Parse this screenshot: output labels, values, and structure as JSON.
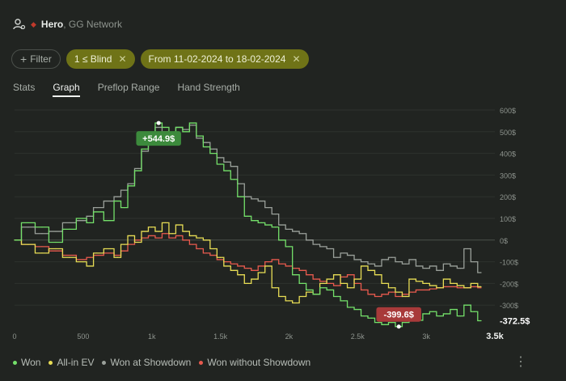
{
  "header": {
    "player": "Hero",
    "network": ", GG Network"
  },
  "filters": {
    "filter_label": "Filter",
    "blind_label": "1 ≤ Blind",
    "date_label": "From 11-02-2024 to 18-02-2024"
  },
  "tabs": [
    "Stats",
    "Graph",
    "Preflop Range",
    "Hand Strength"
  ],
  "active_tab": "Graph",
  "legend": {
    "won": "Won",
    "allin": "All-in EV",
    "showdown": "Won at Showdown",
    "noshowdown": "Won without Showdown"
  },
  "colors": {
    "won": "#74e06a",
    "allin": "#e8dd55",
    "showdown": "#9aa09a",
    "noshowdown": "#e85a4e",
    "chip": "#6f7317"
  },
  "chart_data": {
    "type": "line",
    "xlim": [
      0,
      3500
    ],
    "ylim": [
      -400,
      600
    ],
    "x_ticks": [
      0,
      500,
      1000,
      1500,
      2000,
      2500,
      3000,
      3500
    ],
    "x_tick_labels": [
      "0",
      "500",
      "1k",
      "1.5k",
      "2k",
      "2.5k",
      "3k",
      "3.5k"
    ],
    "y_ticks": [
      600,
      500,
      400,
      300,
      200,
      100,
      0,
      -100,
      -200,
      -300
    ],
    "y_tick_labels": [
      "600$",
      "500$",
      "400$",
      "300$",
      "200$",
      "100$",
      "0$",
      "-100$",
      "-200$",
      "-300$"
    ],
    "annotations": {
      "max_label": "+544.9$",
      "min_label": "-399.6$",
      "end_label": "-372.5$"
    },
    "series": [
      {
        "name": "Won",
        "key": "won",
        "x": [
          0,
          100,
          200,
          300,
          400,
          500,
          550,
          600,
          700,
          750,
          800,
          850,
          900,
          950,
          1000,
          1050,
          1100,
          1150,
          1200,
          1250,
          1300,
          1350,
          1400,
          1450,
          1500,
          1550,
          1600,
          1650,
          1700,
          1750,
          1800,
          1850,
          1900,
          1950,
          2000,
          2050,
          2100,
          2150,
          2200,
          2250,
          2300,
          2350,
          2400,
          2450,
          2500,
          2550,
          2600,
          2650,
          2700,
          2750,
          2800,
          2850,
          2900,
          2950,
          3000,
          3050,
          3100,
          3150,
          3200,
          3250,
          3300,
          3350,
          3400
        ],
        "y": [
          0,
          80,
          60,
          -10,
          50,
          100,
          80,
          130,
          90,
          180,
          150,
          250,
          320,
          420,
          480,
          540,
          520,
          480,
          520,
          500,
          540,
          480,
          430,
          400,
          350,
          320,
          280,
          200,
          110,
          90,
          80,
          70,
          60,
          0,
          -30,
          -160,
          -200,
          -230,
          -250,
          -220,
          -230,
          -260,
          -280,
          -310,
          -320,
          -350,
          -360,
          -380,
          -390,
          -380,
          -399,
          -380,
          -350,
          -370,
          -340,
          -330,
          -350,
          -340,
          -320,
          -350,
          -300,
          -330,
          -372
        ]
      },
      {
        "name": "All-in EV",
        "key": "allin",
        "x": [
          0,
          100,
          200,
          300,
          400,
          500,
          550,
          600,
          700,
          750,
          800,
          850,
          900,
          950,
          1000,
          1050,
          1100,
          1150,
          1200,
          1250,
          1300,
          1350,
          1400,
          1450,
          1500,
          1550,
          1600,
          1650,
          1700,
          1750,
          1800,
          1850,
          1900,
          1950,
          2000,
          2050,
          2100,
          2150,
          2200,
          2250,
          2300,
          2350,
          2400,
          2450,
          2500,
          2550,
          2600,
          2650,
          2700,
          2750,
          2800,
          2850,
          2900,
          2950,
          3000,
          3050,
          3100,
          3150,
          3200,
          3250,
          3300,
          3350,
          3400
        ],
        "y": [
          0,
          -20,
          -60,
          -40,
          -80,
          -100,
          -120,
          -60,
          -40,
          -80,
          -20,
          20,
          -10,
          40,
          60,
          40,
          80,
          30,
          70,
          40,
          20,
          10,
          0,
          -40,
          -80,
          -120,
          -140,
          -160,
          -200,
          -180,
          -150,
          -120,
          -220,
          -260,
          -280,
          -290,
          -260,
          -240,
          -250,
          -200,
          -180,
          -160,
          -200,
          -220,
          -180,
          -120,
          -140,
          -160,
          -200,
          -220,
          -240,
          -260,
          -180,
          -190,
          -200,
          -210,
          -220,
          -180,
          -200,
          -210,
          -220,
          -200,
          -215
        ]
      },
      {
        "name": "Won at Showdown",
        "key": "showdown",
        "x": [
          0,
          100,
          200,
          300,
          400,
          500,
          550,
          600,
          700,
          750,
          800,
          850,
          900,
          950,
          1000,
          1050,
          1100,
          1150,
          1200,
          1250,
          1300,
          1350,
          1400,
          1450,
          1500,
          1550,
          1600,
          1650,
          1700,
          1750,
          1800,
          1850,
          1900,
          1950,
          2000,
          2050,
          2100,
          2150,
          2200,
          2250,
          2300,
          2350,
          2400,
          2450,
          2500,
          2550,
          2600,
          2650,
          2700,
          2750,
          2800,
          2850,
          2900,
          2950,
          3000,
          3050,
          3100,
          3150,
          3200,
          3250,
          3300,
          3350,
          3400
        ],
        "y": [
          0,
          60,
          30,
          40,
          80,
          90,
          110,
          150,
          180,
          200,
          230,
          260,
          330,
          410,
          470,
          520,
          500,
          490,
          520,
          510,
          530,
          470,
          450,
          420,
          380,
          360,
          340,
          260,
          200,
          190,
          180,
          150,
          120,
          70,
          50,
          40,
          30,
          0,
          -20,
          -30,
          -40,
          -80,
          -60,
          -70,
          -90,
          -100,
          -110,
          -120,
          -90,
          -80,
          -100,
          -110,
          -90,
          -120,
          -130,
          -120,
          -140,
          -110,
          -120,
          -130,
          -40,
          -100,
          -150
        ]
      },
      {
        "name": "Won without Showdown",
        "key": "noshowdown",
        "x": [
          0,
          100,
          200,
          300,
          400,
          500,
          550,
          600,
          700,
          750,
          800,
          850,
          900,
          950,
          1000,
          1050,
          1100,
          1150,
          1200,
          1250,
          1300,
          1350,
          1400,
          1450,
          1500,
          1550,
          1600,
          1650,
          1700,
          1750,
          1800,
          1850,
          1900,
          1950,
          2000,
          2050,
          2100,
          2150,
          2200,
          2250,
          2300,
          2350,
          2400,
          2450,
          2500,
          2550,
          2600,
          2650,
          2700,
          2750,
          2800,
          2850,
          2900,
          2950,
          3000,
          3050,
          3100,
          3150,
          3200,
          3250,
          3300,
          3350,
          3400
        ],
        "y": [
          0,
          -20,
          -30,
          -50,
          -70,
          -90,
          -80,
          -70,
          -60,
          -70,
          -50,
          -20,
          0,
          10,
          20,
          10,
          30,
          10,
          20,
          0,
          -20,
          -40,
          -60,
          -70,
          -90,
          -100,
          -110,
          -120,
          -130,
          -140,
          -120,
          -100,
          -90,
          -110,
          -120,
          -130,
          -140,
          -160,
          -180,
          -190,
          -200,
          -210,
          -170,
          -160,
          -200,
          -230,
          -250,
          -260,
          -250,
          -240,
          -260,
          -250,
          -240,
          -230,
          -230,
          -225,
          -220,
          -215,
          -215,
          -220,
          -220,
          -215,
          -220
        ]
      }
    ]
  }
}
